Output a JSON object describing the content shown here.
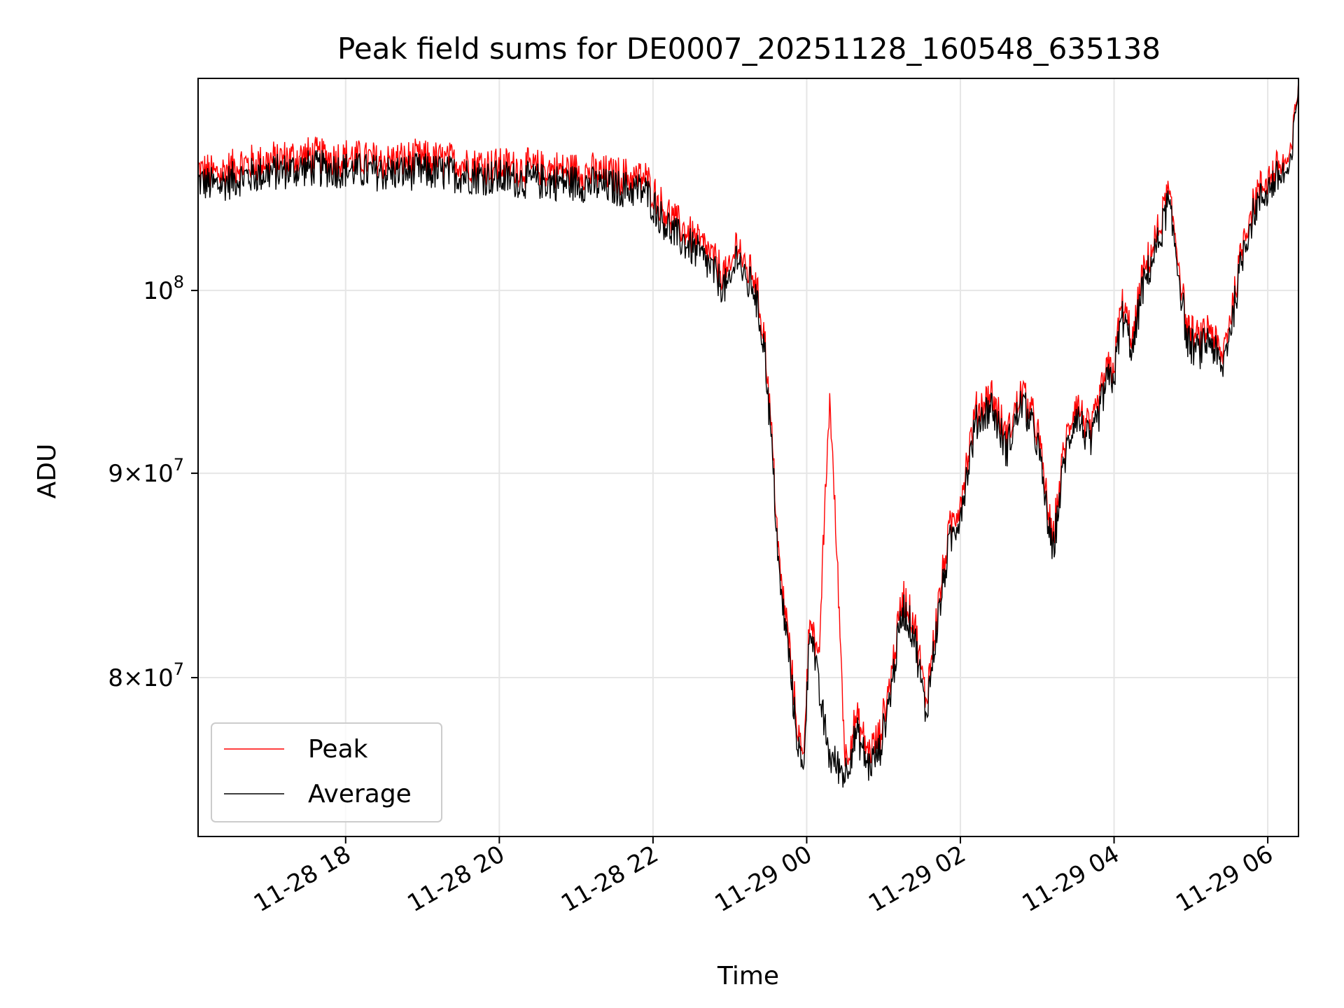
{
  "chart_data": {
    "type": "line",
    "title": "Peak field sums for DE0007_20251128_160548_635138",
    "xlabel": "Time",
    "ylabel": "ADU",
    "y_scale": "log",
    "x_range_hours_from_1128_00": [
      16.08,
      30.4
    ],
    "ylim": [
      73000000,
      113000000
    ],
    "grid": true,
    "legend_position": "lower-left",
    "x_ticks": [
      {
        "hours": 18,
        "label": "11-28 18"
      },
      {
        "hours": 20,
        "label": "11-28 20"
      },
      {
        "hours": 22,
        "label": "11-28 22"
      },
      {
        "hours": 24,
        "label": "11-29 00"
      },
      {
        "hours": 26,
        "label": "11-29 02"
      },
      {
        "hours": 28,
        "label": "11-29 04"
      },
      {
        "hours": 30,
        "label": "11-29 06"
      }
    ],
    "y_ticks": [
      {
        "value": 80000000,
        "mantissa": "8",
        "exp": "7"
      },
      {
        "value": 90000000,
        "mantissa": "9",
        "exp": "7"
      },
      {
        "value": 100000000,
        "mantissa": "",
        "exp": "8"
      }
    ],
    "series": [
      {
        "name": "Peak",
        "color": "#ff0000"
      },
      {
        "name": "Average",
        "color": "#000000"
      }
    ],
    "x_hours": [
      16.08,
      16.3,
      16.6,
      17.0,
      17.5,
      18.0,
      18.5,
      19.0,
      19.5,
      20.0,
      20.5,
      21.0,
      21.5,
      21.9,
      22.1,
      22.3,
      22.5,
      22.7,
      22.9,
      23.0,
      23.1,
      23.2,
      23.3,
      23.45,
      23.55,
      23.65,
      23.75,
      23.85,
      23.95,
      24.05,
      24.15,
      24.3,
      24.5,
      24.65,
      24.8,
      24.95,
      25.1,
      25.25,
      25.4,
      25.55,
      25.7,
      25.85,
      26.0,
      26.2,
      26.4,
      26.6,
      26.8,
      27.0,
      27.2,
      27.35,
      27.5,
      27.7,
      27.9,
      28.0,
      28.1,
      28.25,
      28.35,
      28.5,
      28.6,
      28.7,
      28.8,
      28.95,
      29.1,
      29.25,
      29.4,
      29.55,
      29.7,
      29.85,
      30.0,
      30.15,
      30.3,
      30.4
    ],
    "average_values": [
      106500000,
      106200000,
      106700000,
      107000000,
      107300000,
      107200000,
      107000000,
      107100000,
      106900000,
      106700000,
      106500000,
      106400000,
      106100000,
      105900000,
      104300000,
      103200000,
      102500000,
      101600000,
      100300000,
      100100000,
      102400000,
      100300000,
      100400000,
      96800000,
      91000000,
      84300000,
      81700000,
      78000000,
      75500000,
      82800000,
      79500000,
      76400000,
      75700000,
      77500000,
      76000000,
      76700000,
      79500000,
      83300000,
      82000000,
      78300000,
      82500000,
      86300000,
      88000000,
      92600000,
      93600000,
      91200000,
      93800000,
      91700000,
      85800000,
      90600000,
      93200000,
      91400000,
      94800000,
      95100000,
      98600000,
      96500000,
      99800000,
      101800000,
      103100000,
      105200000,
      102500000,
      97100000,
      96500000,
      97300000,
      95400000,
      98700000,
      102800000,
      105000000,
      106000000,
      106800000,
      107100000,
      113000000
    ],
    "peak_values": [
      107000000,
      106800000,
      107300000,
      107600000,
      107900000,
      107800000,
      107600000,
      107700000,
      107500000,
      107300000,
      107100000,
      107000000,
      106700000,
      106500000,
      104900000,
      103800000,
      103100000,
      102200000,
      100900000,
      100700000,
      103000000,
      100900000,
      101000000,
      97300000,
      91500000,
      84800000,
      82200000,
      78500000,
      76000000,
      83300000,
      80000000,
      93900000,
      76200000,
      78000000,
      76500000,
      77200000,
      80000000,
      83800000,
      82500000,
      78800000,
      83000000,
      86800000,
      88500000,
      93100000,
      94100000,
      91700000,
      94300000,
      92200000,
      86300000,
      91100000,
      93700000,
      91900000,
      95300000,
      95600000,
      99100000,
      97000000,
      100300000,
      102300000,
      103600000,
      105700000,
      103000000,
      97600000,
      97000000,
      97800000,
      95900000,
      99200000,
      103300000,
      105500000,
      106500000,
      107300000,
      107600000,
      113000000
    ]
  }
}
